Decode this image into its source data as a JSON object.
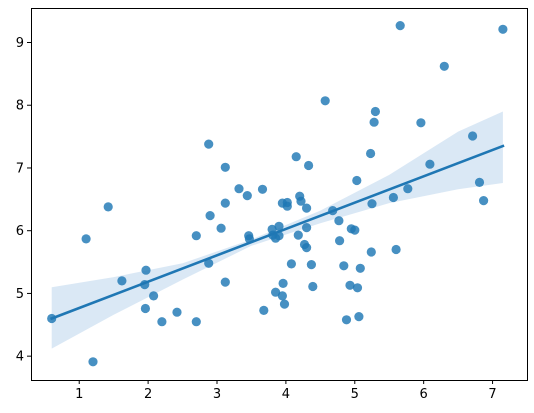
{
  "chart_data": {
    "type": "scatter",
    "title": "",
    "xlabel": "",
    "ylabel": "",
    "xlim": [
      0.3,
      7.5
    ],
    "ylim": [
      3.62,
      9.55
    ],
    "x_ticks": [
      1,
      2,
      3,
      4,
      5,
      6,
      7
    ],
    "y_ticks": [
      4,
      5,
      6,
      7,
      8,
      9
    ],
    "x_tick_labels": [
      "1",
      "2",
      "3",
      "4",
      "5",
      "6",
      "7"
    ],
    "y_tick_labels": [
      "4",
      "5",
      "6",
      "7",
      "8",
      "9"
    ],
    "grid": false,
    "legend": "none",
    "colors": {
      "points": "#1f77b4",
      "line": "#1f77b4",
      "band": "#c6dbef"
    },
    "points": [
      {
        "x": 0.6,
        "y": 4.6
      },
      {
        "x": 1.1,
        "y": 5.87
      },
      {
        "x": 1.2,
        "y": 3.91
      },
      {
        "x": 1.42,
        "y": 6.38
      },
      {
        "x": 1.62,
        "y": 5.2
      },
      {
        "x": 1.95,
        "y": 5.14
      },
      {
        "x": 1.97,
        "y": 5.37
      },
      {
        "x": 1.96,
        "y": 4.76
      },
      {
        "x": 2.08,
        "y": 4.96
      },
      {
        "x": 2.2,
        "y": 4.55
      },
      {
        "x": 2.42,
        "y": 4.7
      },
      {
        "x": 2.7,
        "y": 5.92
      },
      {
        "x": 2.7,
        "y": 4.55
      },
      {
        "x": 2.88,
        "y": 7.38
      },
      {
        "x": 2.88,
        "y": 5.48
      },
      {
        "x": 2.9,
        "y": 6.24
      },
      {
        "x": 3.06,
        "y": 6.04
      },
      {
        "x": 3.12,
        "y": 7.01
      },
      {
        "x": 3.12,
        "y": 6.44
      },
      {
        "x": 3.12,
        "y": 5.18
      },
      {
        "x": 3.32,
        "y": 6.67
      },
      {
        "x": 3.44,
        "y": 6.56
      },
      {
        "x": 3.46,
        "y": 5.92
      },
      {
        "x": 3.47,
        "y": 5.87
      },
      {
        "x": 3.66,
        "y": 6.66
      },
      {
        "x": 3.68,
        "y": 4.73
      },
      {
        "x": 3.8,
        "y": 6.02
      },
      {
        "x": 3.81,
        "y": 5.93
      },
      {
        "x": 3.85,
        "y": 5.88
      },
      {
        "x": 3.85,
        "y": 5.02
      },
      {
        "x": 3.9,
        "y": 6.07
      },
      {
        "x": 3.9,
        "y": 5.92
      },
      {
        "x": 3.95,
        "y": 6.44
      },
      {
        "x": 3.95,
        "y": 4.96
      },
      {
        "x": 3.96,
        "y": 5.16
      },
      {
        "x": 3.98,
        "y": 4.83
      },
      {
        "x": 4.02,
        "y": 6.45
      },
      {
        "x": 4.02,
        "y": 6.39
      },
      {
        "x": 4.08,
        "y": 5.47
      },
      {
        "x": 4.15,
        "y": 7.18
      },
      {
        "x": 4.18,
        "y": 5.93
      },
      {
        "x": 4.2,
        "y": 6.55
      },
      {
        "x": 4.22,
        "y": 6.47
      },
      {
        "x": 4.27,
        "y": 5.78
      },
      {
        "x": 4.3,
        "y": 5.73
      },
      {
        "x": 4.3,
        "y": 6.36
      },
      {
        "x": 4.3,
        "y": 6.05
      },
      {
        "x": 4.33,
        "y": 7.04
      },
      {
        "x": 4.37,
        "y": 5.46
      },
      {
        "x": 4.39,
        "y": 5.11
      },
      {
        "x": 4.57,
        "y": 8.07
      },
      {
        "x": 4.68,
        "y": 6.32
      },
      {
        "x": 4.77,
        "y": 6.16
      },
      {
        "x": 4.78,
        "y": 5.84
      },
      {
        "x": 4.84,
        "y": 5.44
      },
      {
        "x": 4.88,
        "y": 4.58
      },
      {
        "x": 4.93,
        "y": 5.13
      },
      {
        "x": 4.95,
        "y": 6.03
      },
      {
        "x": 5.0,
        "y": 6.01
      },
      {
        "x": 5.03,
        "y": 6.8
      },
      {
        "x": 5.04,
        "y": 5.09
      },
      {
        "x": 5.06,
        "y": 4.63
      },
      {
        "x": 5.08,
        "y": 5.4
      },
      {
        "x": 5.23,
        "y": 7.23
      },
      {
        "x": 5.25,
        "y": 6.43
      },
      {
        "x": 5.24,
        "y": 5.66
      },
      {
        "x": 5.28,
        "y": 7.73
      },
      {
        "x": 5.3,
        "y": 7.9
      },
      {
        "x": 5.56,
        "y": 6.53
      },
      {
        "x": 5.6,
        "y": 5.7
      },
      {
        "x": 5.66,
        "y": 9.27
      },
      {
        "x": 5.77,
        "y": 6.67
      },
      {
        "x": 5.96,
        "y": 7.72
      },
      {
        "x": 6.09,
        "y": 7.06
      },
      {
        "x": 6.3,
        "y": 8.62
      },
      {
        "x": 6.71,
        "y": 7.51
      },
      {
        "x": 6.81,
        "y": 6.77
      },
      {
        "x": 6.87,
        "y": 6.48
      },
      {
        "x": 7.15,
        "y": 9.21
      }
    ],
    "regression": {
      "x": [
        0.6,
        7.15
      ],
      "y": [
        4.6,
        7.35
      ]
    },
    "confidence_band": {
      "x": [
        0.6,
        1.5,
        2.5,
        3.5,
        4.5,
        5.5,
        6.5,
        7.15
      ],
      "lower": [
        4.12,
        4.66,
        5.22,
        5.76,
        6.12,
        6.44,
        6.66,
        6.76
      ],
      "upper": [
        5.1,
        5.26,
        5.48,
        5.86,
        6.32,
        6.89,
        7.58,
        7.9
      ]
    }
  }
}
